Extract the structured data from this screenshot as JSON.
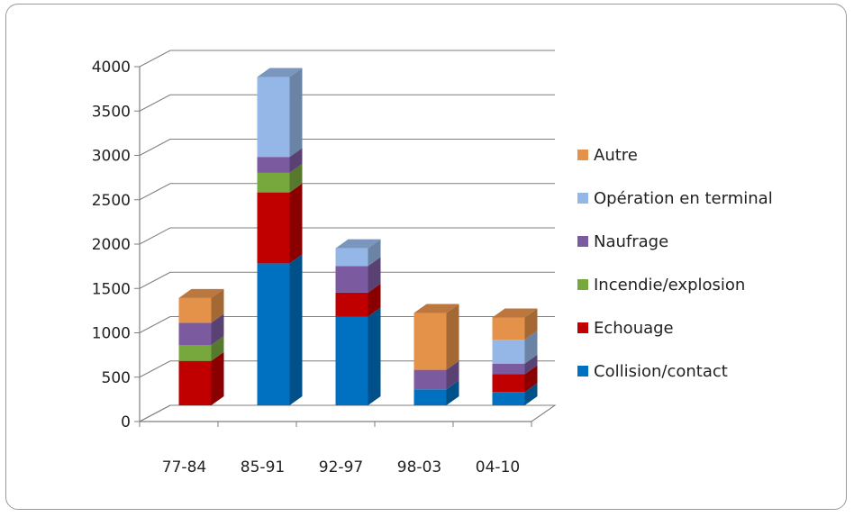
{
  "chart_data": {
    "type": "bar",
    "stacked": true,
    "three_d": true,
    "categories": [
      "77-84",
      "85-91",
      "92-97",
      "98-03",
      "04-10"
    ],
    "ylim": [
      0,
      4000
    ],
    "yticks": [
      "0",
      "500",
      "1000",
      "1500",
      "2000",
      "2500",
      "3000",
      "3500",
      "4000"
    ],
    "grid": true,
    "legend_position": "right",
    "series": [
      {
        "name": "Collision/contact",
        "color": "#0070C0",
        "values": [
          0,
          1600,
          1000,
          180,
          150
        ]
      },
      {
        "name": "Echouage",
        "color": "#C00000",
        "values": [
          500,
          800,
          270,
          0,
          200
        ]
      },
      {
        "name": "Incendie/explosion",
        "color": "#77A83E",
        "values": [
          180,
          220,
          0,
          0,
          0
        ]
      },
      {
        "name": "Naufrage",
        "color": "#7B5AA0",
        "values": [
          250,
          180,
          300,
          220,
          120
        ]
      },
      {
        "name": "Opération en terminal",
        "color": "#95B7E7",
        "values": [
          0,
          900,
          200,
          0,
          270
        ]
      },
      {
        "name": "Autre",
        "color": "#E4914A",
        "values": [
          280,
          0,
          0,
          640,
          250
        ]
      }
    ]
  }
}
